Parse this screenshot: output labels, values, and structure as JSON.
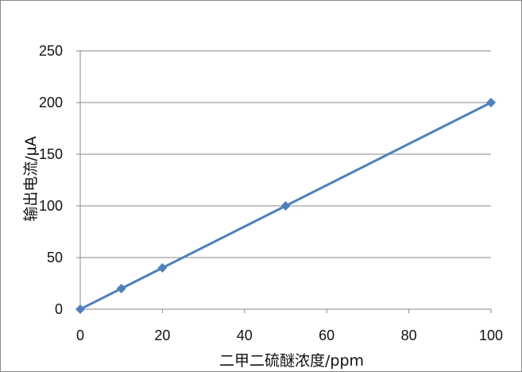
{
  "chart_data": {
    "type": "scatter",
    "title": "",
    "xlabel": "二甲二硫醚浓度/ppm",
    "ylabel": "输出电流/μA",
    "xlim": [
      0,
      100
    ],
    "ylim": [
      0,
      250
    ],
    "xticks": [
      0,
      20,
      40,
      60,
      80,
      100
    ],
    "yticks": [
      0,
      50,
      100,
      150,
      200,
      250
    ],
    "grid": "horizontal",
    "legend": "none",
    "series": [
      {
        "x": [
          0,
          10,
          20,
          50,
          100
        ],
        "y": [
          0,
          20,
          40,
          100,
          200
        ],
        "color": "#4F81BD",
        "line": true,
        "marker": "diamond"
      }
    ]
  }
}
